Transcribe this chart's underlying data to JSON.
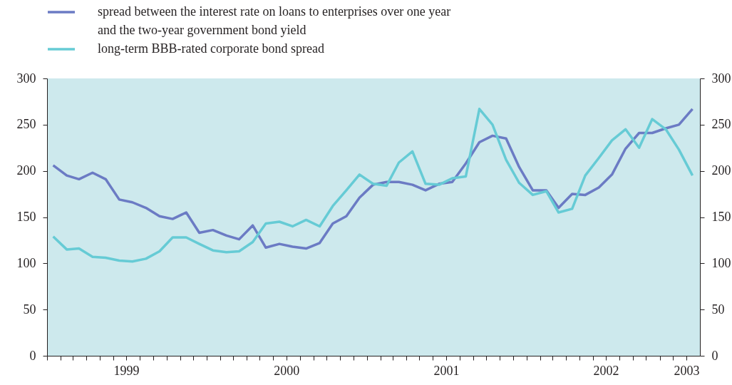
{
  "chart_data": {
    "type": "line",
    "legend": "top left",
    "x": [
      "1999-01-15",
      "1999-02-15",
      "1999-03-15",
      "1999-04-15",
      "1999-05-15",
      "1999-06-15",
      "1999-07-15",
      "1999-08-15",
      "1999-09-15",
      "1999-10-15",
      "1999-11-15",
      "1999-12-15",
      "2000-01-15",
      "2000-02-15",
      "2000-03-15",
      "2000-04-15",
      "2000-05-15",
      "2000-06-15",
      "2000-07-15",
      "2000-08-15",
      "2000-09-15",
      "2000-10-15",
      "2000-11-15",
      "2000-12-15",
      "2001-01-15",
      "2001-02-15",
      "2001-03-15",
      "2001-04-15",
      "2001-05-15",
      "2001-06-15",
      "2001-07-15",
      "2001-08-15",
      "2001-09-15",
      "2001-10-15",
      "2001-11-15",
      "2001-12-15",
      "2002-01-15",
      "2002-02-15",
      "2002-03-15",
      "2002-04-15",
      "2002-05-15",
      "2002-06-15",
      "2002-07-15",
      "2002-08-15",
      "2002-09-15",
      "2002-10-15",
      "2002-11-15",
      "2002-12-15",
      "2003-01-15"
    ],
    "series": [
      {
        "name": "spread between the interest rate on loans to enterprises over one year and the two-year government bond yield",
        "color": "#6b7bc4",
        "values": [
          206,
          195,
          191,
          198,
          191,
          169,
          166,
          160,
          151,
          148,
          155,
          133,
          136,
          130,
          126,
          141,
          117,
          121,
          118,
          116,
          122,
          143,
          151,
          171,
          185,
          188,
          188,
          185,
          179,
          186,
          188,
          208,
          231,
          238,
          235,
          204,
          179,
          179,
          160,
          175,
          174,
          182,
          196,
          224,
          241,
          241,
          246,
          250,
          267
        ]
      },
      {
        "name": "long-term BBB-rated corporate bond spread",
        "color": "#66cbd5",
        "values": [
          129,
          115,
          116,
          107,
          106,
          103,
          102,
          105,
          113,
          128,
          128,
          121,
          114,
          112,
          113,
          123,
          143,
          145,
          140,
          147,
          140,
          162,
          179,
          196,
          186,
          184,
          209,
          221,
          186,
          185,
          192,
          194,
          267,
          250,
          212,
          187,
          174,
          178,
          155,
          159,
          195,
          214,
          233,
          245,
          225,
          256,
          245,
          223,
          195
        ]
      }
    ],
    "xlim": [
      "1999-01-01",
      "2003-02-01"
    ],
    "xticks": [
      {
        "value": "1999-01-01",
        "label": null
      },
      {
        "value": "1999-02-01",
        "label": null
      },
      {
        "value": "1999-03-01",
        "label": null
      },
      {
        "value": "1999-04-01",
        "label": null
      },
      {
        "value": "1999-05-01",
        "label": null
      },
      {
        "value": "1999-06-01",
        "label": null
      },
      {
        "value": "1999-07-01",
        "label": "1999"
      },
      {
        "value": "1999-08-01",
        "label": null
      },
      {
        "value": "1999-09-01",
        "label": null
      },
      {
        "value": "1999-10-01",
        "label": null
      },
      {
        "value": "1999-11-01",
        "label": null
      },
      {
        "value": "1999-12-01",
        "label": null
      },
      {
        "value": "2000-01-01",
        "label": null
      },
      {
        "value": "2000-02-01",
        "label": null
      },
      {
        "value": "2000-03-01",
        "label": null
      },
      {
        "value": "2000-04-01",
        "label": null
      },
      {
        "value": "2000-05-01",
        "label": null
      },
      {
        "value": "2000-06-01",
        "label": null
      },
      {
        "value": "2000-07-01",
        "label": "2000"
      },
      {
        "value": "2000-08-01",
        "label": null
      },
      {
        "value": "2000-09-01",
        "label": null
      },
      {
        "value": "2000-10-01",
        "label": null
      },
      {
        "value": "2000-11-01",
        "label": null
      },
      {
        "value": "2000-12-01",
        "label": null
      },
      {
        "value": "2001-01-01",
        "label": null
      },
      {
        "value": "2001-02-01",
        "label": null
      },
      {
        "value": "2001-03-01",
        "label": null
      },
      {
        "value": "2001-04-01",
        "label": null
      },
      {
        "value": "2001-05-01",
        "label": null
      },
      {
        "value": "2001-06-01",
        "label": null
      },
      {
        "value": "2001-07-01",
        "label": "2001"
      },
      {
        "value": "2001-08-01",
        "label": null
      },
      {
        "value": "2001-09-01",
        "label": null
      },
      {
        "value": "2001-10-01",
        "label": null
      },
      {
        "value": "2001-11-01",
        "label": null
      },
      {
        "value": "2001-12-01",
        "label": null
      },
      {
        "value": "2002-01-01",
        "label": null
      },
      {
        "value": "2002-02-01",
        "label": null
      },
      {
        "value": "2002-03-01",
        "label": null
      },
      {
        "value": "2002-04-01",
        "label": null
      },
      {
        "value": "2002-05-01",
        "label": null
      },
      {
        "value": "2002-06-01",
        "label": null
      },
      {
        "value": "2002-07-01",
        "label": "2002"
      },
      {
        "value": "2002-08-01",
        "label": null
      },
      {
        "value": "2002-09-01",
        "label": null
      },
      {
        "value": "2002-10-01",
        "label": null
      },
      {
        "value": "2002-11-01",
        "label": null
      },
      {
        "value": "2002-12-01",
        "label": null
      },
      {
        "value": "2003-01-01",
        "label": "2003"
      }
    ],
    "ylim": [
      0,
      300
    ],
    "yticks": [
      0,
      50,
      100,
      150,
      200,
      250,
      300
    ],
    "y2lim": [
      0,
      300
    ],
    "y2ticks": [
      0,
      50,
      100,
      150,
      200,
      250,
      300
    ]
  }
}
